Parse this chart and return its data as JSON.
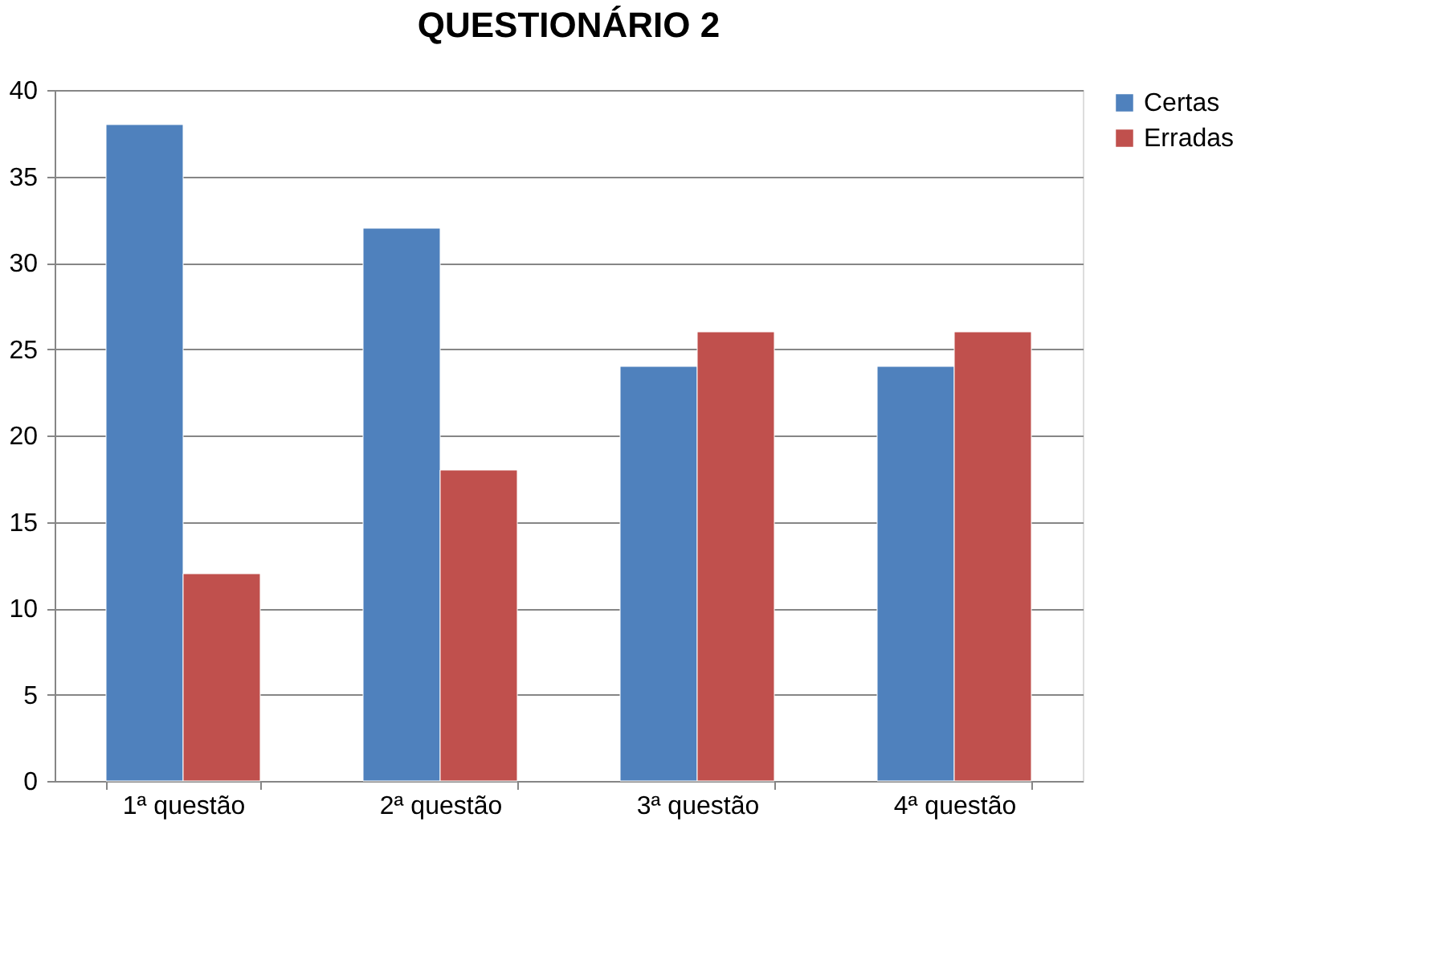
{
  "chart_data": {
    "type": "bar",
    "title": "QUESTIONÁRIO 2",
    "categories": [
      "1ª questão",
      "2ª questão",
      "3ª questão",
      "4ª questão"
    ],
    "series": [
      {
        "name": "Certas",
        "color": "#4f81bd",
        "values": [
          38,
          32,
          24,
          24
        ]
      },
      {
        "name": "Erradas",
        "color": "#c0504d",
        "values": [
          12,
          18,
          26,
          26
        ]
      }
    ],
    "ylim": [
      0,
      40
    ],
    "yticks": [
      0,
      5,
      10,
      15,
      20,
      25,
      30,
      35,
      40
    ],
    "grid": "y",
    "legend": "right"
  }
}
